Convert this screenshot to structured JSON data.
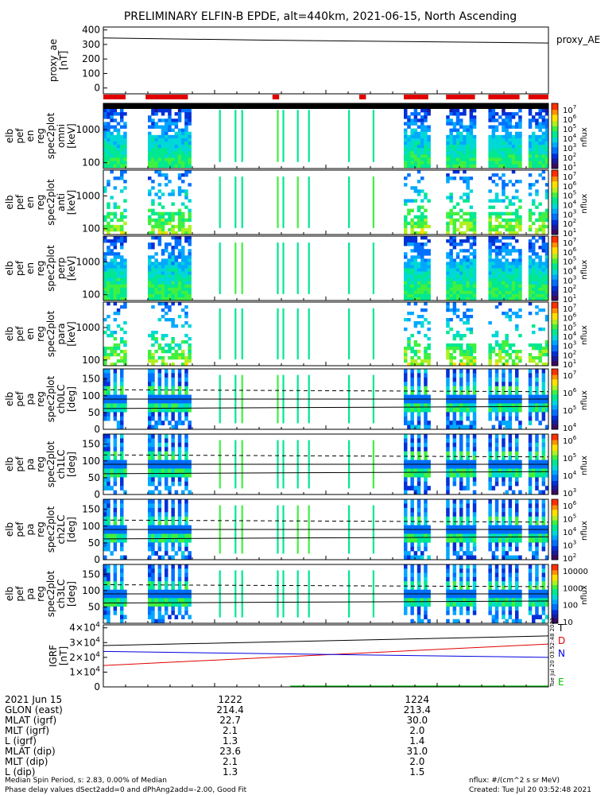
{
  "title": "PRELIMINARY ELFIN-B EPDE, alt=440km, 2021-06-15, North Ascending",
  "colors": {
    "red": "#e00000",
    "green": "#00c000",
    "blue": "#0000e0",
    "black": "#000000"
  },
  "chart_data": [
    {
      "type": "line",
      "id": "proxy_ae",
      "ylabel": [
        "proxy_ae",
        "[nT]"
      ],
      "series_label": "proxy_AE",
      "yticks": [
        "400",
        "300",
        "200",
        "100",
        "0"
      ],
      "ylim": [
        -40,
        420
      ],
      "series": [
        {
          "x_frac": [
            0,
            0.35,
            1
          ],
          "values": [
            345,
            330,
            310
          ]
        }
      ]
    },
    {
      "type": "heatmap",
      "id": "spec_omni",
      "ylabel": [
        "elb",
        "pef",
        "en",
        "reg",
        "spec2plot",
        "omni",
        "[keV]"
      ],
      "yticks": [
        "1000",
        "100"
      ],
      "log": true,
      "cbar_ticks": [
        "10^7",
        "10^6",
        "10^5",
        "10^4",
        "10^3",
        "10^2",
        "10^1"
      ],
      "cbar_unit": "nflux",
      "style": "full"
    },
    {
      "type": "heatmap",
      "id": "spec_anti",
      "ylabel": [
        "elb",
        "pef",
        "en",
        "reg",
        "spec2plot",
        "anti",
        "[keV]"
      ],
      "yticks": [
        "1000",
        "100"
      ],
      "log": true,
      "cbar_ticks": [
        "10^7",
        "10^6",
        "10^5",
        "10^4",
        "10^3",
        "10^2",
        "10^1"
      ],
      "cbar_unit": "nflux",
      "style": "sparse"
    },
    {
      "type": "heatmap",
      "id": "spec_perp",
      "ylabel": [
        "elb",
        "pef",
        "en",
        "reg",
        "spec2plot",
        "perp",
        "[keV]"
      ],
      "yticks": [
        "1000",
        "100"
      ],
      "log": true,
      "cbar_ticks": [
        "10^7",
        "10^6",
        "10^5",
        "10^4",
        "10^3",
        "10^2",
        "10^1"
      ],
      "cbar_unit": "nflux",
      "style": "full"
    },
    {
      "type": "heatmap",
      "id": "spec_para",
      "ylabel": [
        "elb",
        "pef",
        "en",
        "reg",
        "spec2plot",
        "para",
        "[keV]"
      ],
      "yticks": [
        "1000",
        "100"
      ],
      "log": true,
      "cbar_ticks": [
        "10^7",
        "10^6",
        "10^5",
        "10^4",
        "10^3",
        "10^2",
        "10^1"
      ],
      "cbar_unit": "nflux",
      "style": "sparse"
    },
    {
      "type": "heatmap",
      "id": "pa_ch0",
      "ylabel": [
        "elb",
        "pef",
        "pa",
        "reg",
        "spec2plot",
        "ch0LC",
        "[deg]"
      ],
      "yticks": [
        "150",
        "100",
        "50",
        "0"
      ],
      "ylim": [
        0,
        180
      ],
      "cbar_ticks": [
        "10^7",
        "10^6",
        "10^5",
        "10^4"
      ],
      "cbar_unit": "nflux",
      "style": "pa"
    },
    {
      "type": "heatmap",
      "id": "pa_ch1",
      "ylabel": [
        "elb",
        "pef",
        "pa",
        "reg",
        "spec2plot",
        "ch1LC",
        "[deg]"
      ],
      "yticks": [
        "150",
        "100",
        "50",
        "0"
      ],
      "ylim": [
        0,
        180
      ],
      "cbar_ticks": [
        "10^6",
        "10^5",
        "10^4",
        "10^3"
      ],
      "cbar_unit": "nflux",
      "style": "pa"
    },
    {
      "type": "heatmap",
      "id": "pa_ch2",
      "ylabel": [
        "elb",
        "pef",
        "pa",
        "reg",
        "spec2plot",
        "ch2LC",
        "[deg]"
      ],
      "yticks": [
        "150",
        "100",
        "50",
        "0"
      ],
      "ylim": [
        0,
        180
      ],
      "cbar_ticks": [
        "10^6",
        "10^5",
        "10^4",
        "10^3",
        "10^2"
      ],
      "cbar_unit": "nflux",
      "style": "pa"
    },
    {
      "type": "heatmap",
      "id": "pa_ch3",
      "ylabel": [
        "elb",
        "pef",
        "pa",
        "reg",
        "spec2plot",
        "ch3LC",
        "[deg]"
      ],
      "yticks": [
        "150",
        "100",
        "50"
      ],
      "ylim": [
        0,
        180
      ],
      "cbar_ticks": [
        "10000",
        "1000",
        "100",
        "10"
      ],
      "cbar_unit": "nflux",
      "style": "pa"
    },
    {
      "type": "line",
      "id": "igrf",
      "ylabel": [
        "IGRF",
        "[nT]"
      ],
      "yticks": [
        "4×10^4",
        "3×10^4",
        "2×10^4",
        "1×10^4",
        "0"
      ],
      "ylim": [
        0,
        42000
      ],
      "series": [
        {
          "name": "T",
          "color": "#000000",
          "values_start": 28000,
          "values_end": 34500
        },
        {
          "name": "D",
          "color": "#e00000",
          "values_start": 14500,
          "values_end": 29000
        },
        {
          "name": "N",
          "color": "#0000e0",
          "values_start": 24000,
          "values_end": 20000
        },
        {
          "name": "E",
          "color": "#00c000",
          "values_start": 0,
          "values_end": 0
        }
      ]
    }
  ],
  "stamp": "Tue Jul 20 03:52:48 2021",
  "footer": {
    "date": "2021 Jun 15",
    "columns": [
      "1222",
      "1224"
    ],
    "rows": [
      {
        "label": "GLON (east)",
        "values": [
          "214.4",
          "213.4"
        ]
      },
      {
        "label": "MLAT (igrf)",
        "values": [
          "22.7",
          "30.0"
        ]
      },
      {
        "label": "MLT (igrf)",
        "values": [
          "2.1",
          "2.0"
        ]
      },
      {
        "label": "L (igrf)",
        "values": [
          "1.3",
          "1.4"
        ]
      },
      {
        "label": "MLAT (dip)",
        "values": [
          "23.6",
          "31.0"
        ]
      },
      {
        "label": "MLT (dip)",
        "values": [
          "2.1",
          "2.0"
        ]
      },
      {
        "label": "L (dip)",
        "values": [
          "1.3",
          "1.5"
        ]
      }
    ],
    "left_notes": [
      "Median Spin Period, s: 2.83, 0.00% of Median",
      "Phase delay values dSect2add=0 and dPhAng2add=-2.00, Good Fit"
    ],
    "right_notes": [
      "nflux: #/(cm^2 s sr MeV)",
      "Created: Tue Jul 20 03:52:48 2021"
    ]
  }
}
